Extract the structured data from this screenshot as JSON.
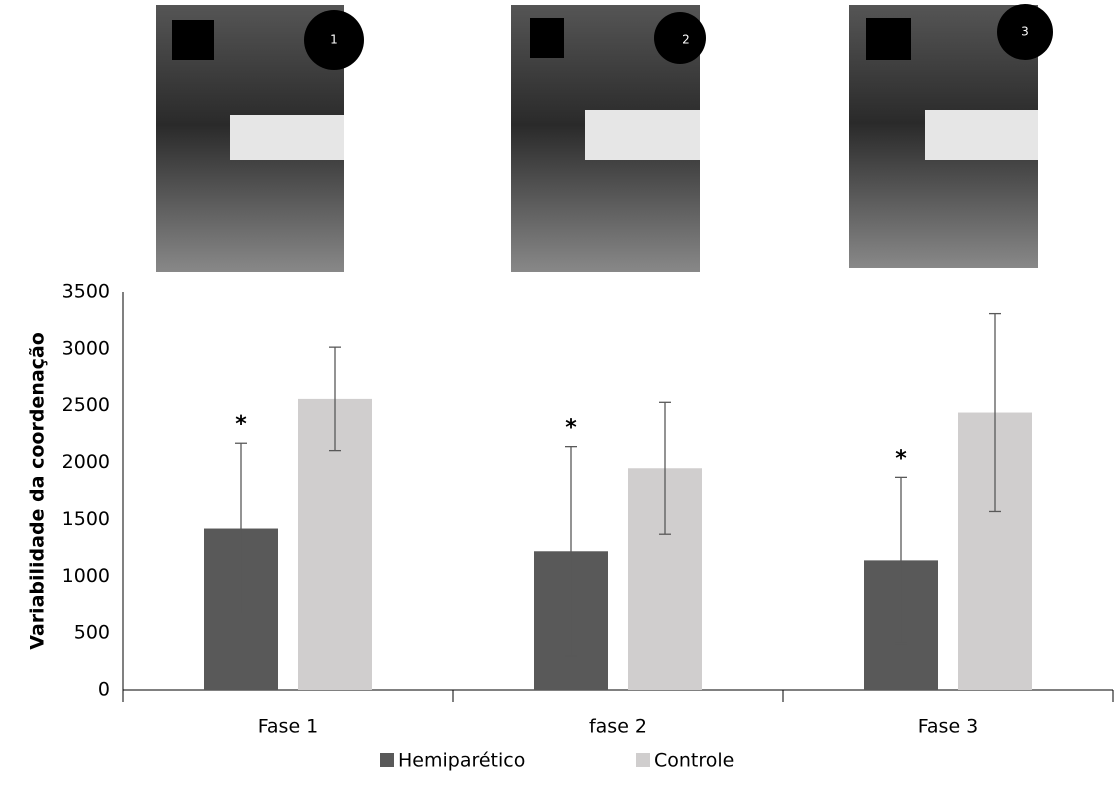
{
  "photos": [
    "1",
    "2",
    "3"
  ],
  "chart_data": {
    "type": "bar",
    "y_label": "Variabilidade da coordenação",
    "categories": [
      "Fase 1",
      "fase 2",
      "Fase 3"
    ],
    "series": [
      {
        "name": "Hemiparético",
        "color": "#595959",
        "values": [
          1420,
          1220,
          1140
        ],
        "errors": [
          750,
          920,
          730
        ],
        "annotations": [
          "*",
          "*",
          "*"
        ]
      },
      {
        "name": "Controle",
        "color": "#d0cece",
        "values": [
          2560,
          1950,
          2440
        ],
        "errors": [
          455,
          580,
          870
        ]
      }
    ],
    "ylim": [
      0,
      3500
    ],
    "yticks": [
      0,
      500,
      1000,
      1500,
      2000,
      2500,
      3000,
      3500
    ],
    "grid": false
  }
}
